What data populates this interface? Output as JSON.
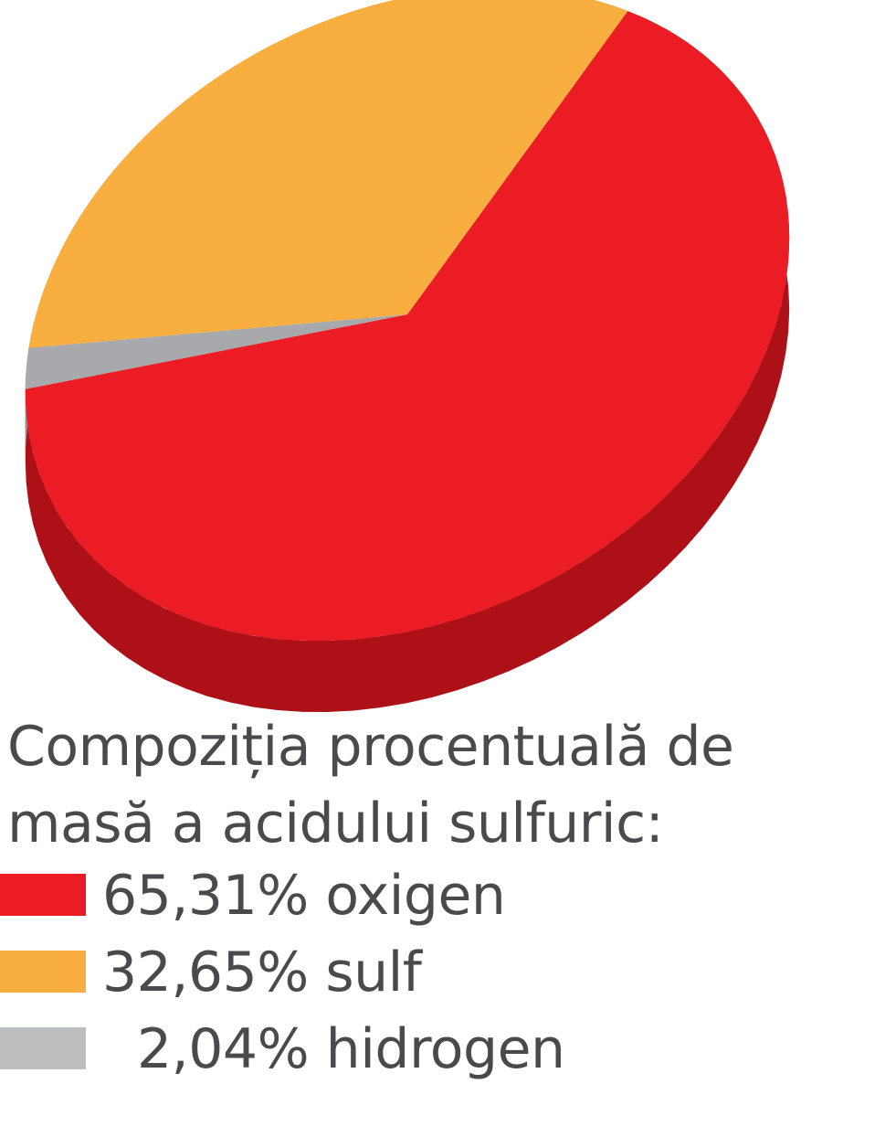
{
  "chart_data": {
    "type": "pie",
    "style": "3d",
    "title": "Compoziția procentuală de masă a acidului sulfuric:",
    "slices": [
      {
        "label": "oxigen",
        "value": 65.31,
        "value_label": "65,31%",
        "color": "#ec1c24",
        "side_color": "#ad1016"
      },
      {
        "label": "sulf",
        "value": 32.65,
        "value_label": "32,65%",
        "color": "#f9ae40",
        "side_color": "#b5842c"
      },
      {
        "label": "hidrogen",
        "value": 2.04,
        "value_label": "2,04%",
        "color": "#a7a9ac",
        "side_color": "#8e9094"
      }
    ],
    "legend_position": "bottom-left"
  },
  "legend": {
    "items": [
      {
        "text": "65,31% oxigen",
        "color": "#ec1c24"
      },
      {
        "text": "32,65% sulf",
        "color": "#f9ae40"
      },
      {
        "text": "2,04% hidrogen",
        "color": "#bcbec0"
      }
    ]
  }
}
